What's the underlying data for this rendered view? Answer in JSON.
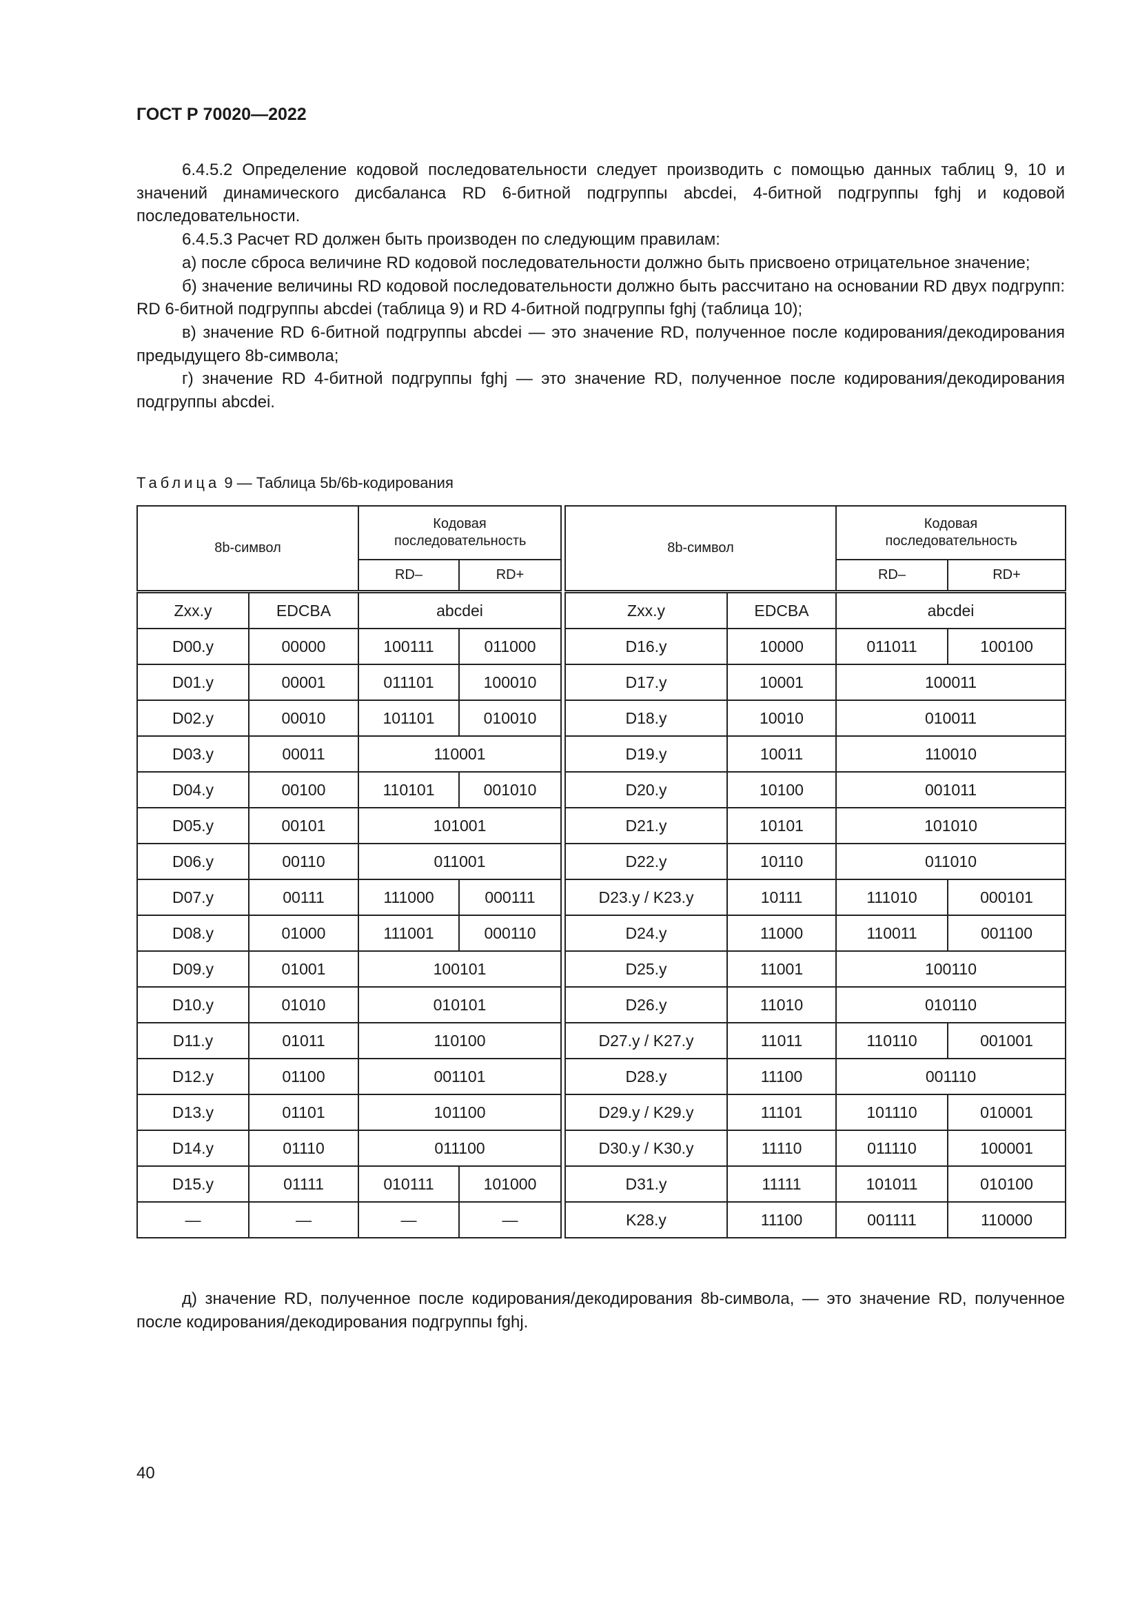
{
  "header": "ГОСТ Р 70020—2022",
  "paragraphs": [
    "6.4.5.2 Определение кодовой последовательности следует производить с помощью данных таблиц 9, 10 и значений динамического дисбаланса RD 6-битной подгруппы abcdei, 4-битной подгруппы fghj и кодовой последовательности.",
    "6.4.5.3 Расчет RD должен быть производен по следующим правилам:",
    "а) после сброса величине RD кодовой последовательности должно быть присвоено отрицательное значение;",
    "б) значение величины RD кодовой последовательности должно быть рассчитано на основании RD двух подгрупп: RD 6-битной подгруппы abcdei (таблица 9) и RD 4-битной подгруппы fghj (таблица 10);",
    "в) значение RD 6-битной подгруппы abcdei — это значение RD, полученное после кодирования/декодирования предыдущего 8b-символа;",
    "г) значение RD 4-битной подгруппы fghj — это значение RD, полученное после кодирования/декодирования подгруппы abcdei."
  ],
  "table": {
    "caption_word": "Таблица",
    "caption_rest": "9 — Таблица 5b/6b-кодирования",
    "headers": {
      "symbol": "8b-символ",
      "code": "Кодовая последовательность",
      "rd_minus": "RD–",
      "rd_plus": "RD+",
      "zxx": "Zxx.y",
      "edcba": "EDCBA",
      "abcdei": "abcdei"
    },
    "left_rows": [
      [
        "D00.y",
        "00000",
        "100111",
        "011000"
      ],
      [
        "D01.y",
        "00001",
        "011101",
        "100010"
      ],
      [
        "D02.y",
        "00010",
        "101101",
        "010010"
      ],
      [
        "D03.y",
        "00011",
        "110001",
        "110001"
      ],
      [
        "D04.y",
        "00100",
        "110101",
        "001010"
      ],
      [
        "D05.y",
        "00101",
        "101001",
        "101001"
      ],
      [
        "D06.y",
        "00110",
        "011001",
        "011001"
      ],
      [
        "D07.y",
        "00111",
        "111000",
        "000111"
      ],
      [
        "D08.y",
        "01000",
        "111001",
        "000110"
      ],
      [
        "D09.y",
        "01001",
        "100101",
        "100101"
      ],
      [
        "D10.y",
        "01010",
        "010101",
        "010101"
      ],
      [
        "D11.y",
        "01011",
        "110100",
        "110100"
      ],
      [
        "D12.y",
        "01100",
        "001101",
        "001101"
      ],
      [
        "D13.y",
        "01101",
        "101100",
        "101100"
      ],
      [
        "D14.y",
        "01110",
        "011100",
        "011100"
      ],
      [
        "D15.y",
        "01111",
        "010111",
        "101000"
      ],
      [
        "—",
        "—",
        "—",
        "—"
      ]
    ],
    "right_rows": [
      [
        "D16.y",
        "10000",
        "011011",
        "100100"
      ],
      [
        "D17.y",
        "10001",
        "100011",
        "100011"
      ],
      [
        "D18.y",
        "10010",
        "010011",
        "010011"
      ],
      [
        "D19.y",
        "10011",
        "110010",
        "110010"
      ],
      [
        "D20.y",
        "10100",
        "001011",
        "001011"
      ],
      [
        "D21.y",
        "10101",
        "101010",
        "101010"
      ],
      [
        "D22.y",
        "10110",
        "011010",
        "011010"
      ],
      [
        "D23.y / K23.y",
        "10111",
        "111010",
        "000101"
      ],
      [
        "D24.y",
        "11000",
        "110011",
        "001100"
      ],
      [
        "D25.y",
        "11001",
        "100110",
        "100110"
      ],
      [
        "D26.y",
        "11010",
        "010110",
        "010110"
      ],
      [
        "D27.y / K27.y",
        "11011",
        "110110",
        "001001"
      ],
      [
        "D28.y",
        "11100",
        "001110",
        "001110"
      ],
      [
        "D29.y / K29.y",
        "11101",
        "101110",
        "010001"
      ],
      [
        "D30.y / K30.y",
        "11110",
        "011110",
        "100001"
      ],
      [
        "D31.y",
        "11111",
        "101011",
        "010100"
      ],
      [
        "K28.y",
        "11100",
        "001111",
        "110000"
      ]
    ]
  },
  "after_paragraph": "д) значение RD, полученное после кодирования/декодирования 8b-символа, — это значение RD, полученное после кодирования/декодирования подгруппы fghj.",
  "page_number": "40"
}
